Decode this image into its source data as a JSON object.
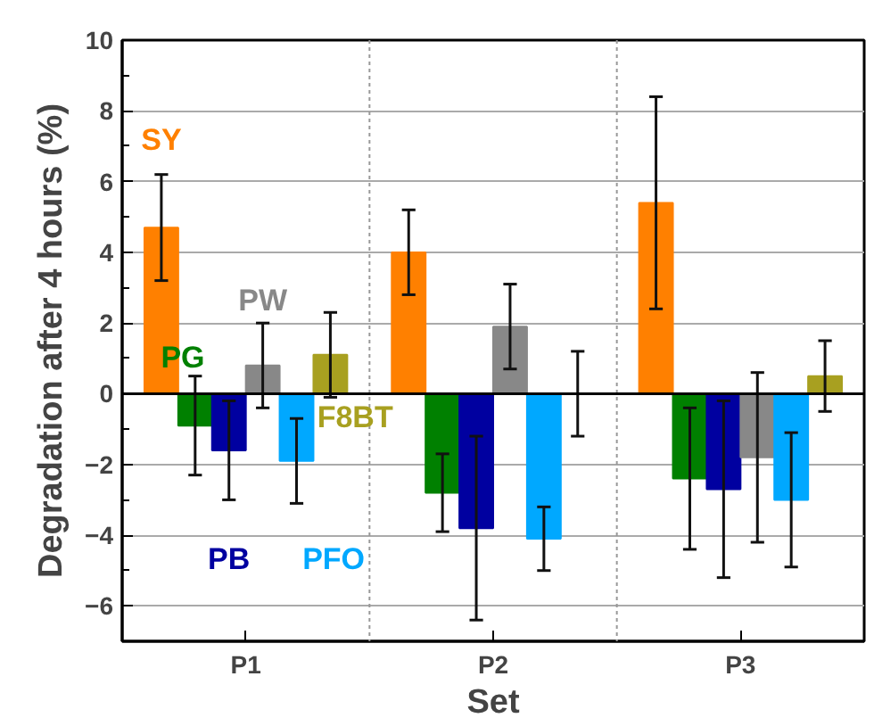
{
  "chart_data": {
    "type": "bar",
    "xlabel": "Set",
    "ylabel": "Degradation after 4 hours (%)",
    "categories": [
      "P1",
      "P2",
      "P3"
    ],
    "series": [
      {
        "name": "SY",
        "color": "#ff8000",
        "values": [
          4.7,
          4.0,
          5.4
        ],
        "errors": [
          1.5,
          1.2,
          3.0
        ]
      },
      {
        "name": "PG",
        "color": "#008000",
        "values": [
          -0.9,
          -2.8,
          -2.4
        ],
        "errors": [
          1.4,
          1.1,
          2.0
        ]
      },
      {
        "name": "PB",
        "color": "#0000a0",
        "values": [
          -1.6,
          -3.8,
          -2.7
        ],
        "errors": [
          1.4,
          2.6,
          2.5
        ]
      },
      {
        "name": "PW",
        "color": "#888888",
        "values": [
          0.8,
          1.9,
          -1.8
        ],
        "errors": [
          1.2,
          1.2,
          2.4
        ]
      },
      {
        "name": "PFO",
        "color": "#00a8ff",
        "values": [
          -1.9,
          -4.1,
          -3.0
        ],
        "errors": [
          1.2,
          0.9,
          1.9
        ]
      },
      {
        "name": "F8BT",
        "color": "#a8a020",
        "values": [
          1.1,
          0.0,
          0.5
        ],
        "errors": [
          1.2,
          1.2,
          1.0
        ]
      }
    ],
    "ylim": [
      -7,
      10
    ],
    "yticks": [
      -6,
      -4,
      -2,
      0,
      2,
      4,
      6,
      8,
      10
    ],
    "grid": true,
    "legend": false
  }
}
